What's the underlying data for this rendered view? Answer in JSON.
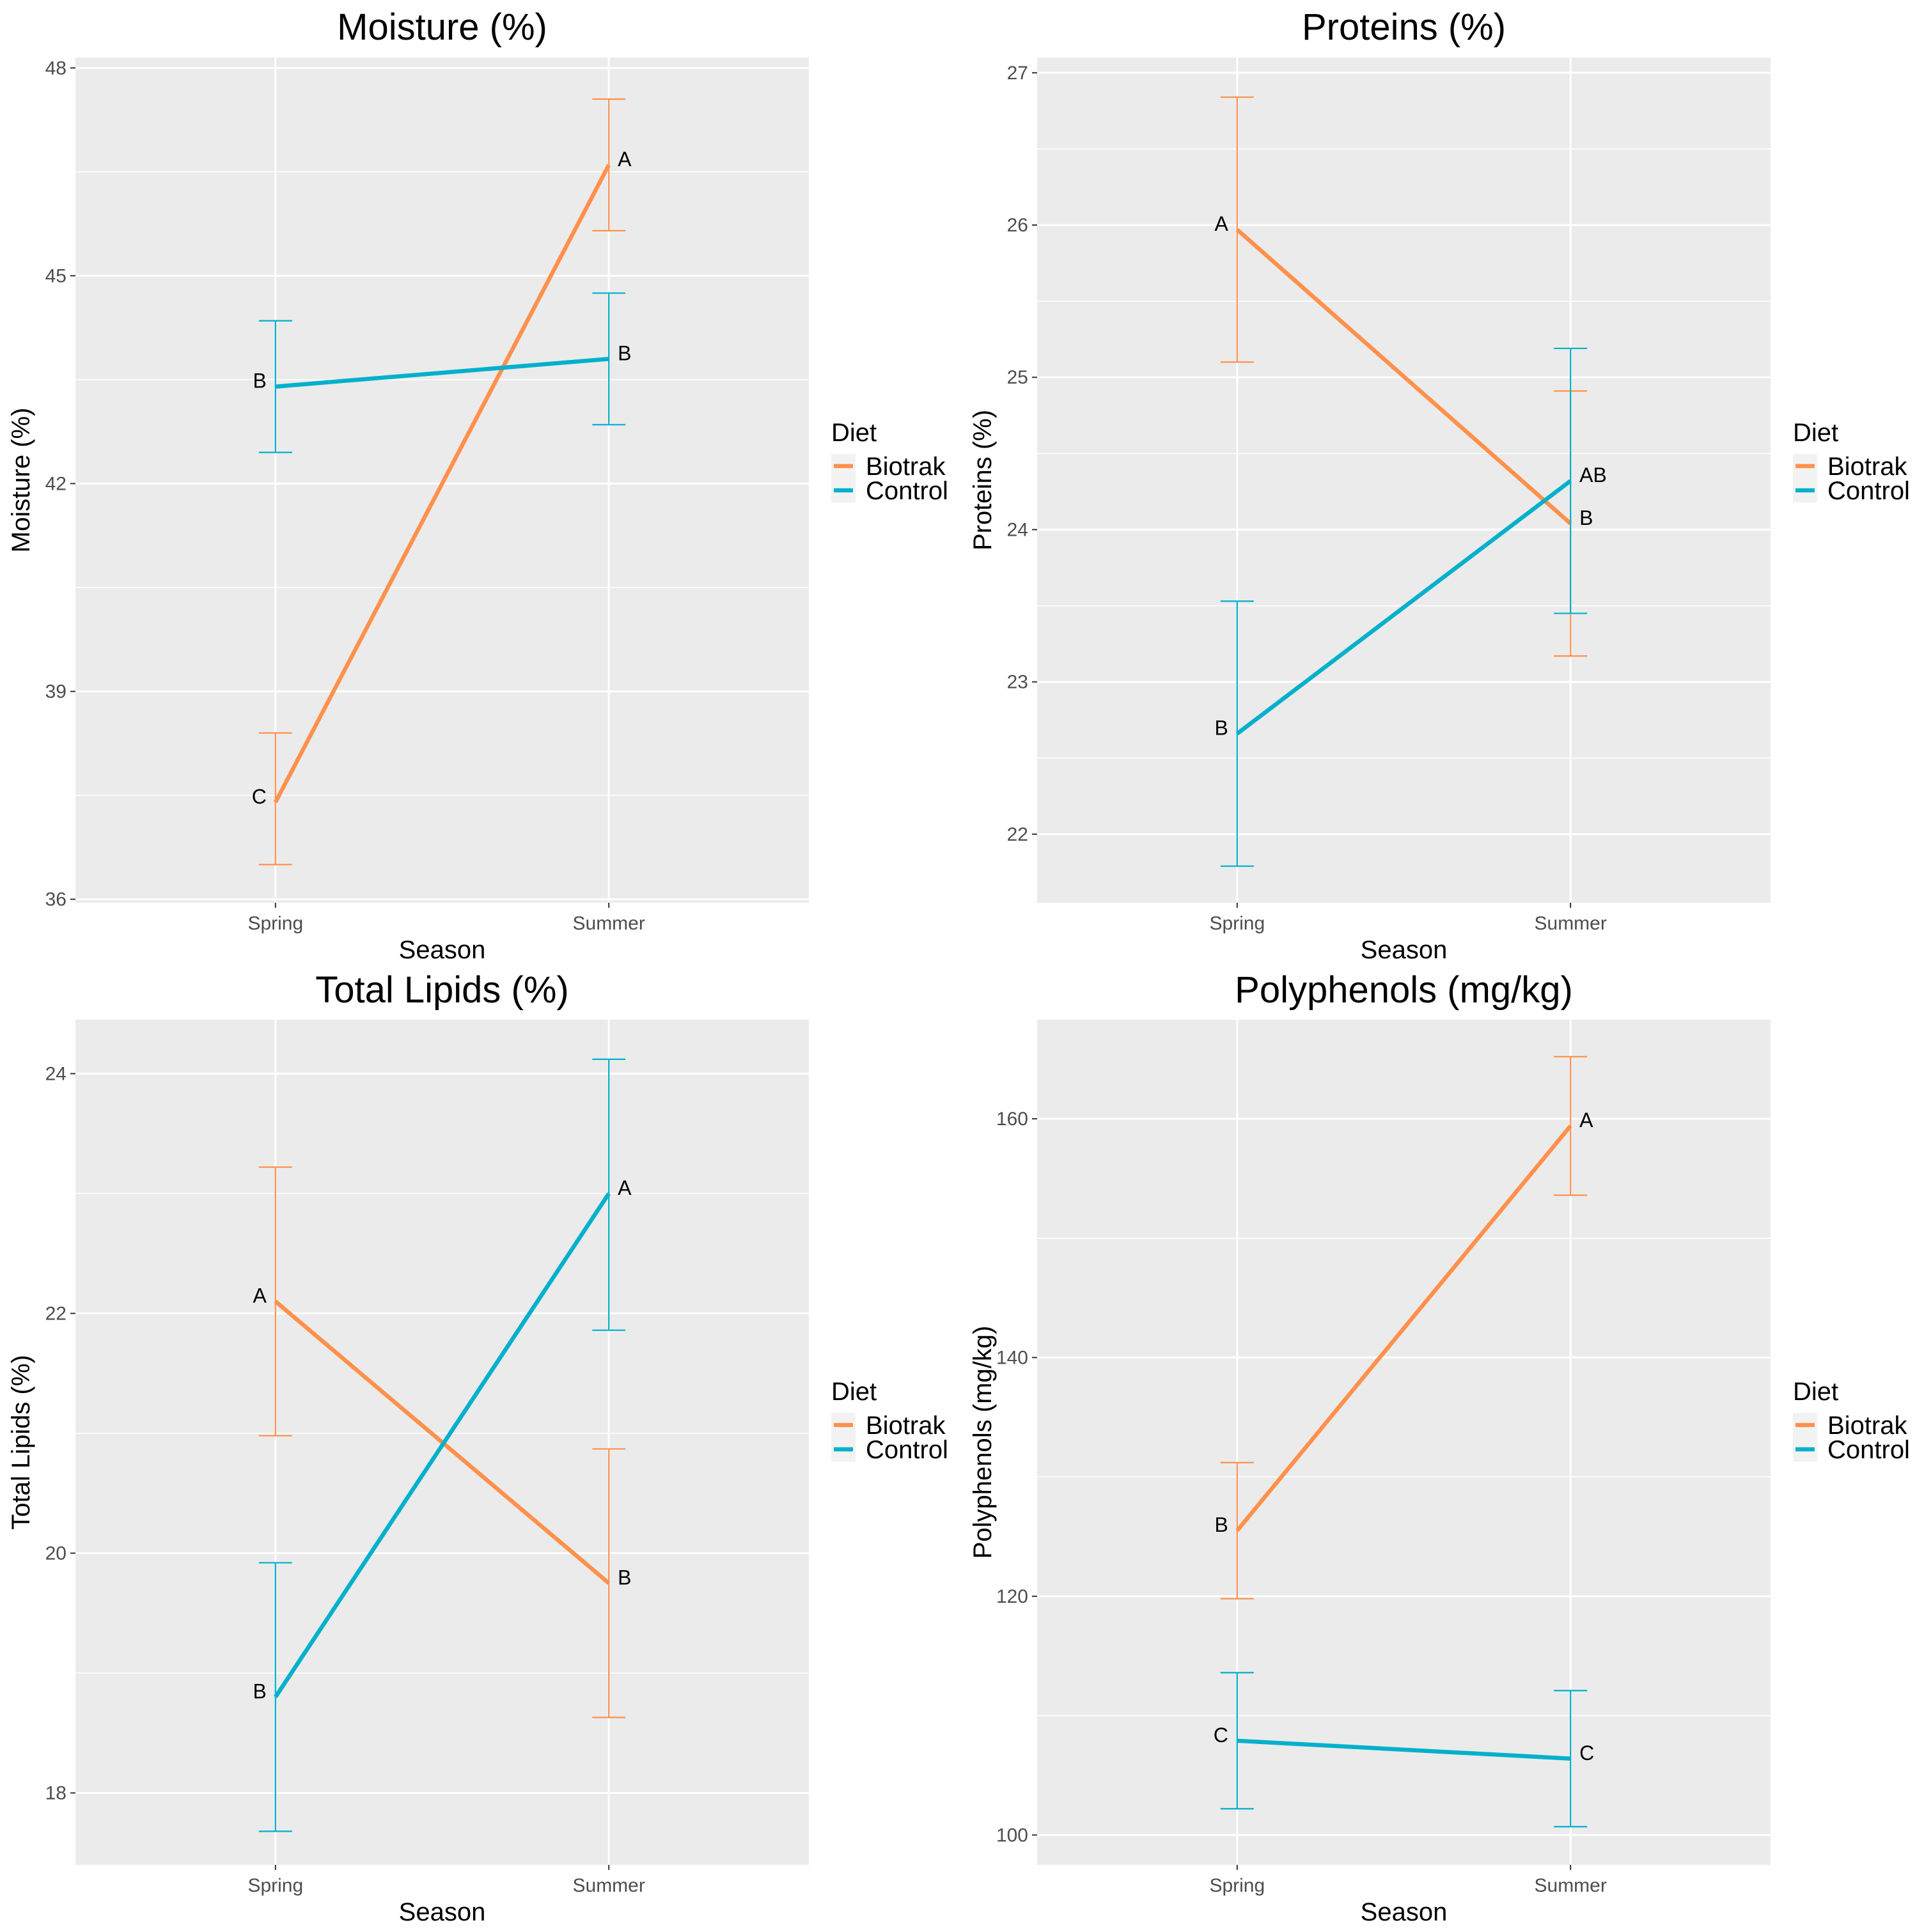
{
  "colors": {
    "Biotrak": "#ff914d",
    "Control": "#00b0cc",
    "panel_bg": "#ebebeb",
    "grid": "#ffffff",
    "tick_text": "#4d4d4d"
  },
  "chart_data": [
    {
      "type": "line",
      "title": "Moisture (%)",
      "xlabel": "Season",
      "ylabel": "Moisture (%)",
      "categories": [
        "Spring",
        "Summer"
      ],
      "ylim": [
        35.95,
        48.15
      ],
      "yticks": [
        36,
        39,
        42,
        45,
        48
      ],
      "legend": {
        "title": "Diet",
        "items": [
          "Biotrak",
          "Control"
        ],
        "position": "right"
      },
      "series": [
        {
          "name": "Biotrak",
          "values": [
            37.4,
            46.6
          ],
          "lower": [
            36.5,
            45.65
          ],
          "upper": [
            38.4,
            47.55
          ],
          "letters": [
            "C",
            "A"
          ]
        },
        {
          "name": "Control",
          "values": [
            43.4,
            43.8
          ],
          "lower": [
            42.45,
            42.85
          ],
          "upper": [
            44.35,
            44.75
          ],
          "letters": [
            "B",
            "B"
          ]
        }
      ]
    },
    {
      "type": "line",
      "title": "Proteins (%)",
      "xlabel": "Season",
      "ylabel": "Proteins (%)",
      "categories": [
        "Spring",
        "Summer"
      ],
      "ylim": [
        21.55,
        27.1
      ],
      "yticks": [
        22,
        23,
        24,
        25,
        26,
        27
      ],
      "legend": {
        "title": "Diet",
        "items": [
          "Biotrak",
          "Control"
        ],
        "position": "right"
      },
      "series": [
        {
          "name": "Biotrak",
          "values": [
            25.97,
            24.04
          ],
          "lower": [
            25.1,
            23.17
          ],
          "upper": [
            26.84,
            24.91
          ],
          "letters": [
            "A",
            "B"
          ]
        },
        {
          "name": "Control",
          "values": [
            22.66,
            24.32
          ],
          "lower": [
            21.79,
            23.45
          ],
          "upper": [
            23.53,
            25.19
          ],
          "letters": [
            "B",
            "AB"
          ]
        }
      ]
    },
    {
      "type": "line",
      "title": "Total Lipids (%)",
      "xlabel": "Season",
      "ylabel": "Total Lipids (%)",
      "categories": [
        "Spring",
        "Summer"
      ],
      "ylim": [
        17.4,
        24.45
      ],
      "yticks": [
        18,
        20,
        22,
        24
      ],
      "legend": {
        "title": "Diet",
        "items": [
          "Biotrak",
          "Control"
        ],
        "position": "right"
      },
      "series": [
        {
          "name": "Biotrak",
          "values": [
            22.1,
            19.75
          ],
          "lower": [
            20.98,
            18.63
          ],
          "upper": [
            23.22,
            20.87
          ],
          "letters": [
            "A",
            "B"
          ]
        },
        {
          "name": "Control",
          "values": [
            18.8,
            23
          ],
          "lower": [
            17.68,
            21.86
          ],
          "upper": [
            19.92,
            24.12
          ],
          "letters": [
            "B",
            "A"
          ]
        }
      ]
    },
    {
      "type": "line",
      "title": "Polyphenols (mg/kg)",
      "xlabel": "Season",
      "ylabel": "Polyphenols (mg/kg)",
      "categories": [
        "Spring",
        "Summer"
      ],
      "ylim": [
        97.5,
        168.3
      ],
      "yticks": [
        100,
        120,
        140,
        160
      ],
      "legend": {
        "title": "Diet",
        "items": [
          "Biotrak",
          "Control"
        ],
        "position": "right"
      },
      "series": [
        {
          "name": "Biotrak",
          "values": [
            125.5,
            159.4
          ],
          "lower": [
            119.8,
            153.6
          ],
          "upper": [
            131.2,
            165.2
          ],
          "letters": [
            "B",
            "A"
          ]
        },
        {
          "name": "Control",
          "values": [
            107.9,
            106.4
          ],
          "lower": [
            102.2,
            100.7
          ],
          "upper": [
            113.6,
            112.1
          ],
          "letters": [
            "C",
            "C"
          ]
        }
      ]
    }
  ]
}
